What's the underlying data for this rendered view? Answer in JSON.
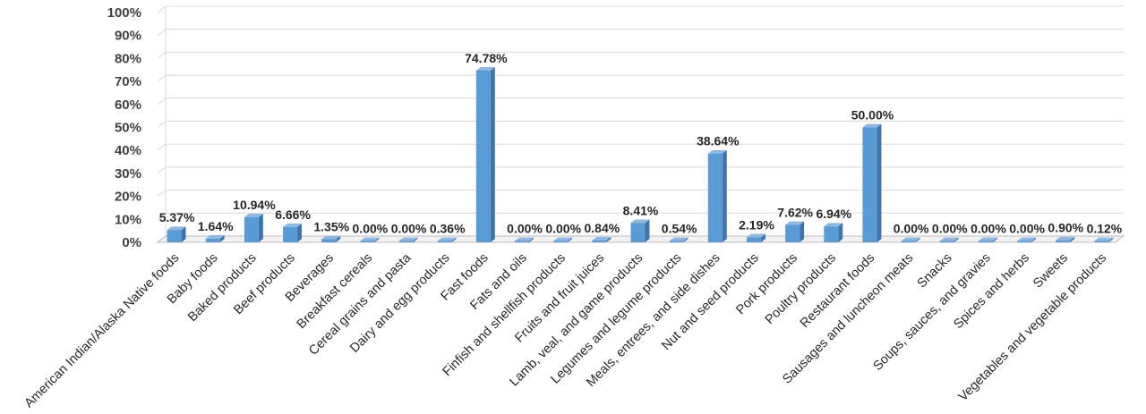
{
  "chart_data": {
    "type": "bar",
    "title": "",
    "xlabel": "",
    "ylabel": "",
    "ylim": [
      0,
      100
    ],
    "y_ticks": [
      "0%",
      "10%",
      "20%",
      "30%",
      "40%",
      "50%",
      "60%",
      "70%",
      "80%",
      "90%",
      "100%"
    ],
    "bar_style": "3d-column",
    "grid": true,
    "colors": {
      "bar_front": "#5b9bd5",
      "bar_side": "#3f75aa",
      "bar_top": "#8cb9e3",
      "gridline": "#d9d9d9",
      "floor": "#bfbfbf"
    },
    "categories": [
      "American Indian/Alaska Native foods",
      "Baby foods",
      "Baked products",
      "Beef products",
      "Beverages",
      "Breakfast cereals",
      "Cereal grains and pasta",
      "Dairy and egg products",
      "Fast foods",
      "Fats and oils",
      "Finfish and shellfish products",
      "Fruits and fruit juices",
      "Lamb, veal, and game products",
      "Legumes and legume products",
      "Meals, entrees, and side dishes",
      "Nut and seed products",
      "Pork products",
      "Poultry products",
      "Restaurant foods",
      "Sausages and luncheon meats",
      "Snacks",
      "Soups, sauces, and gravies",
      "Spices and herbs",
      "Sweets",
      "Vegetables and vegetable products"
    ],
    "values": [
      5.37,
      1.64,
      10.94,
      6.66,
      1.35,
      0.0,
      0.0,
      0.36,
      74.78,
      0.0,
      0.0,
      0.84,
      8.41,
      0.54,
      38.64,
      2.19,
      7.62,
      6.94,
      50.0,
      0.0,
      0.0,
      0.0,
      0.0,
      0.9,
      0.12
    ],
    "data_labels": [
      "5.37%",
      "1.64%",
      "10.94%",
      "6.66%",
      "1.35%",
      "0.00%",
      "0.00%",
      "0.36%",
      "74.78%",
      "0.00%",
      "0.00%",
      "0.84%",
      "8.41%",
      "0.54%",
      "38.64%",
      "2.19%",
      "7.62%",
      "6.94%",
      "50.00%",
      "0.00%",
      "0.00%",
      "0.00%",
      "0.00%",
      "0.90%",
      "0.12%"
    ]
  }
}
